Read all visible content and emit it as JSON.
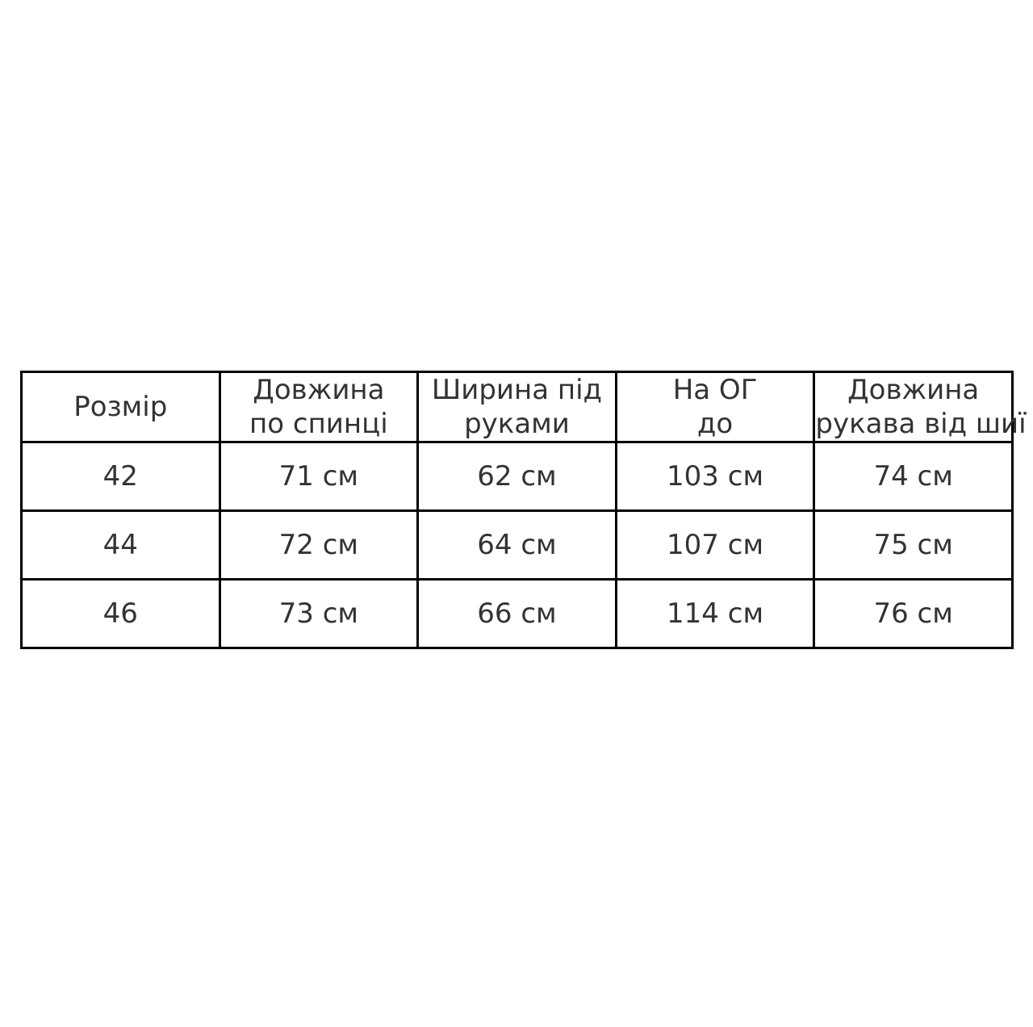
{
  "table": {
    "header": [
      [
        "Розмір"
      ],
      [
        "Довжина",
        "по спинці"
      ],
      [
        "Ширина під",
        "руками"
      ],
      [
        "На ОГ",
        "до"
      ],
      [
        "Довжина",
        "рукава від шиї"
      ]
    ],
    "rows": [
      [
        "42",
        "71 см",
        "62 см",
        "103 см",
        "74 см"
      ],
      [
        "44",
        "72 см",
        "64 см",
        "107 см",
        "75 см"
      ],
      [
        "46",
        "73 см",
        "66 см",
        "114 см",
        "76 см"
      ]
    ]
  }
}
